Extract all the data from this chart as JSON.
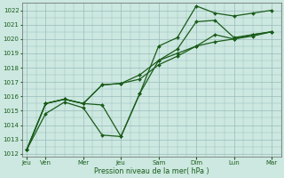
{
  "xlabel": "Pression niveau de la mer( hPa )",
  "bg_color": "#cce8e0",
  "grid_color": "#99bbbb",
  "line_color": "#1a5c1a",
  "ylim": [
    1012,
    1022.5
  ],
  "yticks": [
    1012,
    1013,
    1014,
    1015,
    1016,
    1017,
    1018,
    1019,
    1020,
    1021,
    1022
  ],
  "xtick_labels": [
    "Jeu",
    "Ven",
    "Mer",
    "Jeu",
    "Sam",
    "Dim",
    "Lun",
    "Mar"
  ],
  "xtick_positions": [
    0,
    2,
    6,
    10,
    14,
    18,
    22,
    26
  ],
  "xlim": [
    -0.5,
    27
  ],
  "series": [
    {
      "x": [
        0,
        2,
        4,
        6,
        8,
        10,
        12,
        14,
        16,
        18,
        20,
        22,
        24,
        26
      ],
      "y": [
        1012.3,
        1014.8,
        1015.6,
        1015.2,
        1013.3,
        1013.2,
        1016.2,
        1019.5,
        1020.1,
        1022.3,
        1021.8,
        1021.6,
        1021.8,
        1022.0
      ]
    },
    {
      "x": [
        0,
        2,
        4,
        6,
        8,
        10,
        12,
        14,
        16,
        18,
        20,
        22,
        24,
        26
      ],
      "y": [
        1012.3,
        1015.5,
        1015.8,
        1015.5,
        1015.4,
        1013.2,
        1016.2,
        1018.5,
        1019.3,
        1021.2,
        1021.3,
        1020.1,
        1020.3,
        1020.5
      ]
    },
    {
      "x": [
        0,
        2,
        4,
        6,
        8,
        10,
        12,
        14,
        16,
        18,
        20,
        22,
        24,
        26
      ],
      "y": [
        1012.3,
        1015.5,
        1015.8,
        1015.5,
        1016.8,
        1016.9,
        1017.2,
        1018.2,
        1018.8,
        1019.5,
        1020.3,
        1020.0,
        1020.3,
        1020.5
      ]
    },
    {
      "x": [
        0,
        2,
        4,
        6,
        8,
        10,
        12,
        14,
        16,
        18,
        20,
        22,
        24,
        26
      ],
      "y": [
        1012.3,
        1015.5,
        1015.8,
        1015.5,
        1016.8,
        1016.9,
        1017.5,
        1018.5,
        1019.0,
        1019.5,
        1019.8,
        1020.0,
        1020.2,
        1020.5
      ]
    }
  ]
}
